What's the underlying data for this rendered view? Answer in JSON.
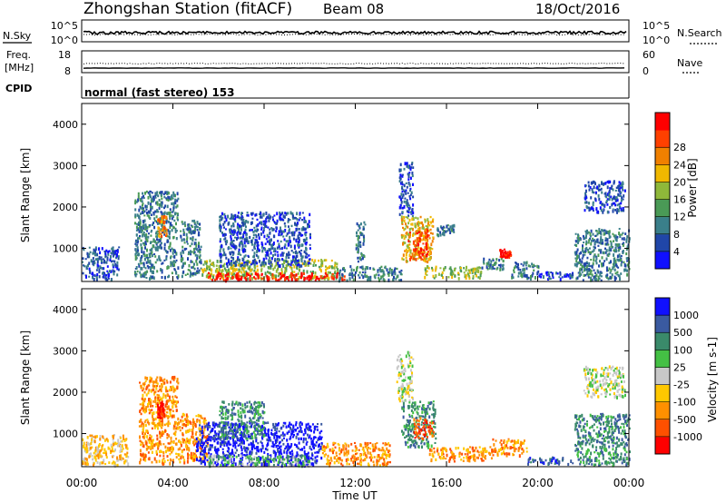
{
  "header": {
    "station": "Zhongshan Station (fitACF)",
    "beam": "Beam 08",
    "date": "18/Oct/2016"
  },
  "noise_panel": {
    "left_label": "N.Sky",
    "right_label": "N.Search",
    "left_ticks": [
      "10^5",
      "10^0"
    ],
    "right_ticks": [
      "10^5",
      "10^0"
    ]
  },
  "freq_panel": {
    "left_label_line1": "Freq.",
    "left_label_line2": "[MHz]",
    "right_label": "Nave",
    "left_ticks": [
      "18",
      "8"
    ],
    "right_ticks": [
      "60",
      "0"
    ]
  },
  "cpid": {
    "label": "CPID",
    "text": "normal (fast stereo) 153"
  },
  "chart_data": [
    {
      "type": "heatmap",
      "name": "power",
      "ylabel": "Slant Range [km]",
      "ylim": [
        200,
        4500
      ],
      "yticks": [
        "1000",
        "2000",
        "3000",
        "4000"
      ],
      "xlim": [
        0,
        24
      ],
      "colorbar": {
        "label": "Power [dB]",
        "ticks": [
          "4",
          "8",
          "12",
          "16",
          "20",
          "24",
          "28"
        ],
        "colors": [
          "#1010ff",
          "#2046a8",
          "#3a7f8a",
          "#4a9a56",
          "#8fb83a",
          "#f0b800",
          "#f08000",
          "#ff4000",
          "#ff0000"
        ]
      },
      "regions": [
        {
          "t0": 0.0,
          "t1": 1.6,
          "r0": 250,
          "r1": 1050,
          "level": 1
        },
        {
          "t0": 2.3,
          "t1": 4.2,
          "r0": 300,
          "r1": 2400,
          "level": 2
        },
        {
          "t0": 3.3,
          "t1": 3.7,
          "r0": 1300,
          "r1": 1800,
          "level": 6
        },
        {
          "t0": 4.3,
          "t1": 5.2,
          "r0": 350,
          "r1": 1700,
          "level": 2
        },
        {
          "t0": 5.2,
          "t1": 11.2,
          "r0": 280,
          "r1": 750,
          "level": 4
        },
        {
          "t0": 5.5,
          "t1": 11.5,
          "r0": 250,
          "r1": 430,
          "level": 8
        },
        {
          "t0": 6.0,
          "t1": 10.0,
          "r0": 600,
          "r1": 1900,
          "level": 1
        },
        {
          "t0": 11.2,
          "t1": 14.0,
          "r0": 250,
          "r1": 600,
          "level": 2
        },
        {
          "t0": 12.0,
          "t1": 12.4,
          "r0": 700,
          "r1": 1700,
          "level": 2
        },
        {
          "t0": 13.9,
          "t1": 14.5,
          "r0": 1800,
          "r1": 3100,
          "level": 1
        },
        {
          "t0": 14.0,
          "t1": 15.4,
          "r0": 700,
          "r1": 1800,
          "level": 5
        },
        {
          "t0": 14.3,
          "t1": 15.2,
          "r0": 750,
          "r1": 1500,
          "level": 7
        },
        {
          "t0": 15.5,
          "t1": 16.3,
          "r0": 1350,
          "r1": 1600,
          "level": 2
        },
        {
          "t0": 15.0,
          "t1": 17.5,
          "r0": 300,
          "r1": 600,
          "level": 4
        },
        {
          "t0": 17.5,
          "t1": 18.5,
          "r0": 500,
          "r1": 800,
          "level": 2
        },
        {
          "t0": 18.3,
          "t1": 18.8,
          "r0": 800,
          "r1": 1000,
          "level": 8
        },
        {
          "t0": 18.8,
          "t1": 20.0,
          "r0": 300,
          "r1": 700,
          "level": 2
        },
        {
          "t0": 20.0,
          "t1": 21.5,
          "r0": 280,
          "r1": 450,
          "level": 1
        },
        {
          "t0": 21.6,
          "t1": 24.0,
          "r0": 250,
          "r1": 1500,
          "level": 2
        },
        {
          "t0": 22.0,
          "t1": 23.8,
          "r0": 1900,
          "r1": 2650,
          "level": 1
        }
      ]
    },
    {
      "type": "heatmap",
      "name": "velocity",
      "ylabel": "Slant Range [km]",
      "ylim": [
        200,
        4500
      ],
      "yticks": [
        "1000",
        "2000",
        "3000",
        "4000"
      ],
      "xlabel": "Time UT",
      "xlim": [
        0,
        24
      ],
      "xticks": [
        "00:00",
        "04:00",
        "08:00",
        "12:00",
        "16:00",
        "20:00",
        "00:00"
      ],
      "colorbar": {
        "label": "Velocity [m s-1]",
        "ticks": [
          "1000",
          "500",
          "100",
          "25",
          "-25",
          "-100",
          "-500",
          "-1000"
        ],
        "colors": [
          "#1010ff",
          "#3a5aa0",
          "#3a8a6a",
          "#44c044",
          "#c8c8c8",
          "#ffc800",
          "#ff9000",
          "#ff5000",
          "#ff0000"
        ]
      },
      "regions": [
        {
          "t0": 0.0,
          "t1": 2.0,
          "r0": 250,
          "r1": 1000,
          "level": 5
        },
        {
          "t0": 2.5,
          "t1": 4.2,
          "r0": 300,
          "r1": 2400,
          "level": 6
        },
        {
          "t0": 3.3,
          "t1": 3.6,
          "r0": 1400,
          "r1": 1800,
          "level": 8
        },
        {
          "t0": 4.2,
          "t1": 5.5,
          "r0": 300,
          "r1": 1500,
          "level": 6
        },
        {
          "t0": 5.0,
          "t1": 10.5,
          "r0": 250,
          "r1": 1300,
          "level": 0
        },
        {
          "t0": 5.5,
          "t1": 10.0,
          "r0": 250,
          "r1": 500,
          "level": 3
        },
        {
          "t0": 6.0,
          "t1": 8.0,
          "r0": 900,
          "r1": 1800,
          "level": 2
        },
        {
          "t0": 10.5,
          "t1": 13.5,
          "r0": 250,
          "r1": 800,
          "level": 6
        },
        {
          "t0": 13.8,
          "t1": 14.5,
          "r0": 1800,
          "r1": 3000,
          "level": 4
        },
        {
          "t0": 14.0,
          "t1": 15.5,
          "r0": 700,
          "r1": 1800,
          "level": 2
        },
        {
          "t0": 14.5,
          "t1": 15.4,
          "r0": 900,
          "r1": 1400,
          "level": 7
        },
        {
          "t0": 15.2,
          "t1": 18.0,
          "r0": 350,
          "r1": 700,
          "level": 6
        },
        {
          "t0": 18.0,
          "t1": 19.5,
          "r0": 500,
          "r1": 900,
          "level": 6
        },
        {
          "t0": 19.5,
          "t1": 21.5,
          "r0": 280,
          "r1": 450,
          "level": 1
        },
        {
          "t0": 21.6,
          "t1": 24.0,
          "r0": 250,
          "r1": 1500,
          "level": 2
        },
        {
          "t0": 22.0,
          "t1": 23.8,
          "r0": 1900,
          "r1": 2650,
          "level": 4
        }
      ]
    }
  ]
}
